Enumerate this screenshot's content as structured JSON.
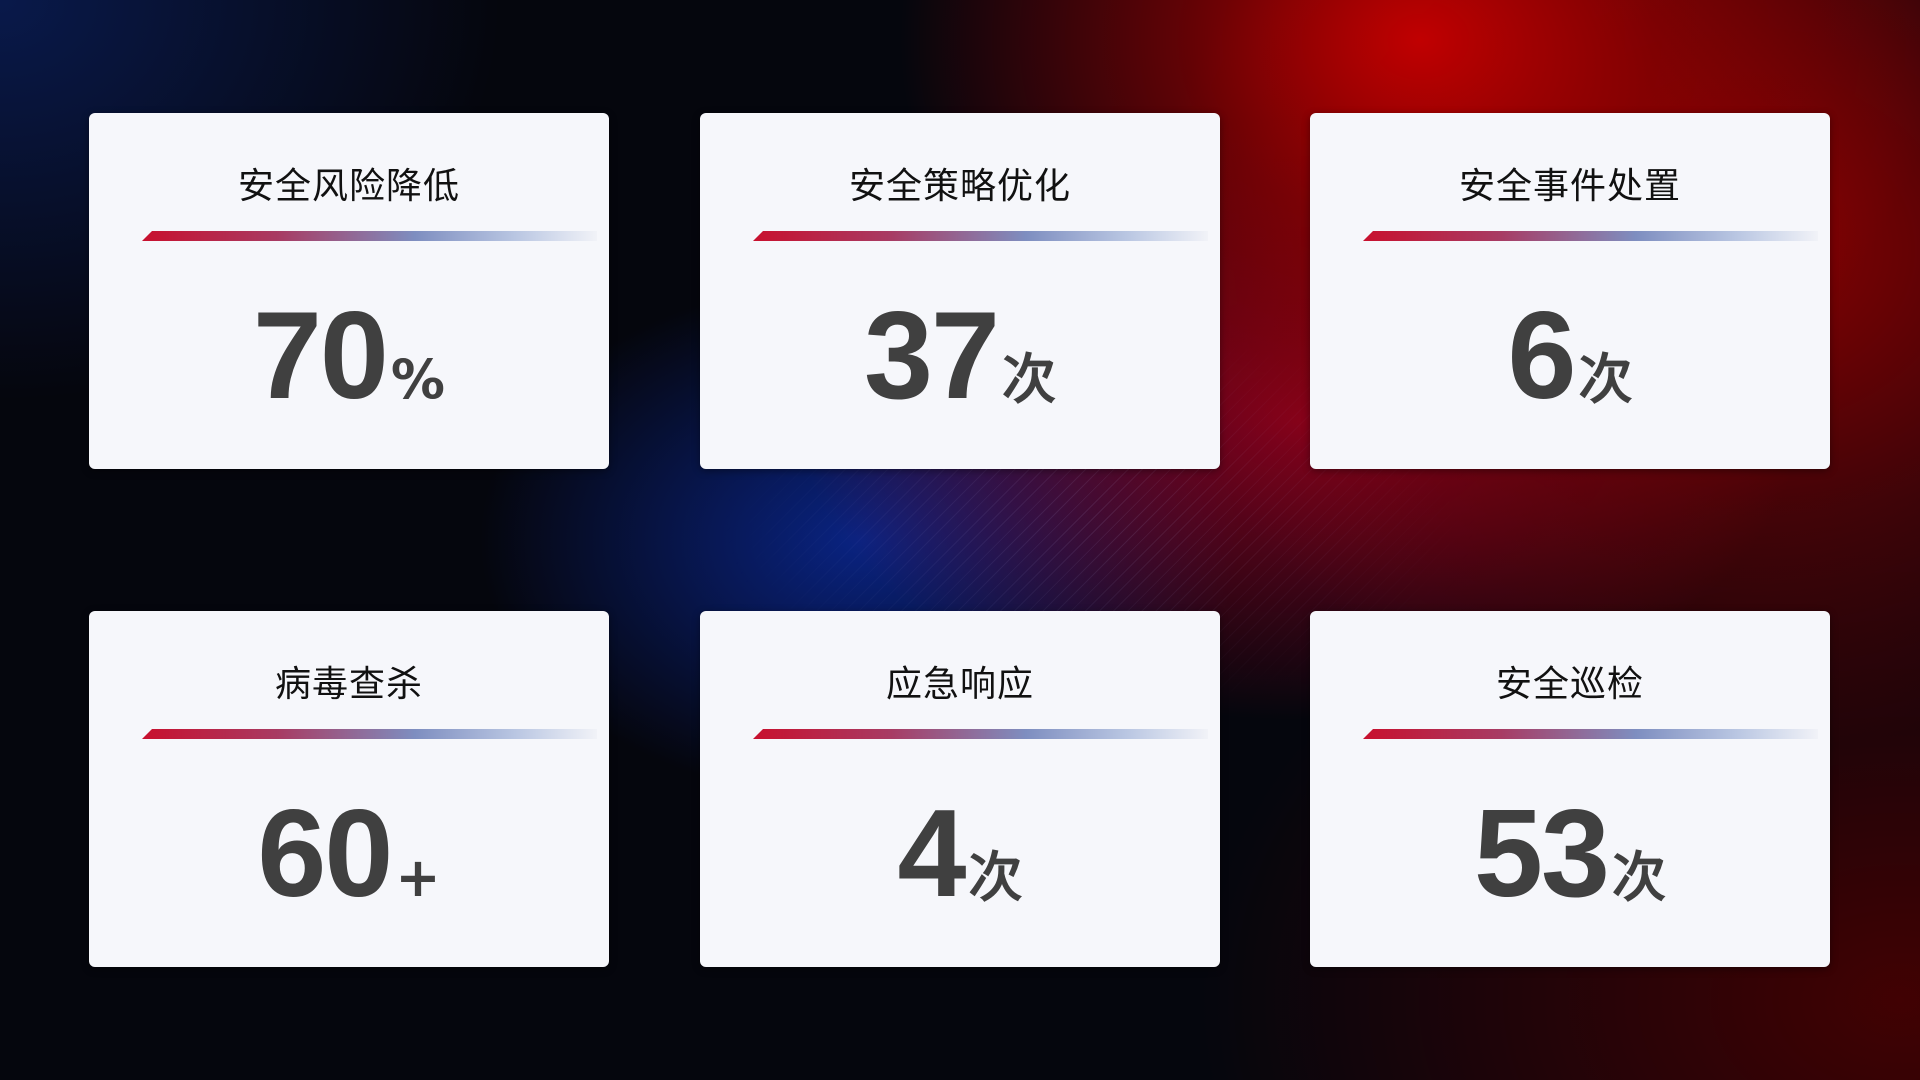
{
  "cards": [
    {
      "title": "安全风险降低",
      "value": "70",
      "unit": "%"
    },
    {
      "title": "安全策略优化",
      "value": "37",
      "unit": "次"
    },
    {
      "title": "安全事件处置",
      "value": "6",
      "unit": "次"
    },
    {
      "title": "病毒查杀",
      "value": "60",
      "unit": "+"
    },
    {
      "title": "应急响应",
      "value": "4",
      "unit": "次"
    },
    {
      "title": "安全巡检",
      "value": "53",
      "unit": "次"
    }
  ],
  "colors": {
    "accent_red": "#c8102e",
    "accent_blue": "#7e8ec0",
    "card_bg": "#f6f7fb",
    "value_text": "#404040"
  }
}
